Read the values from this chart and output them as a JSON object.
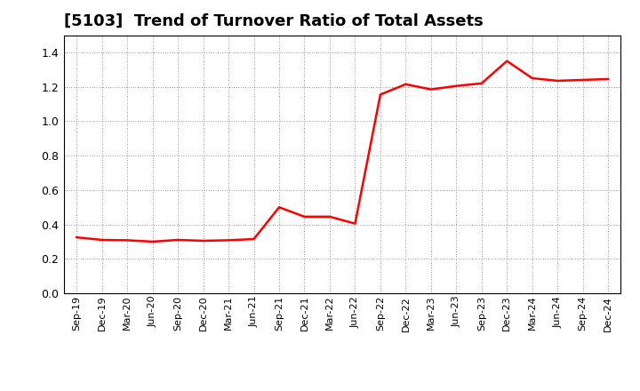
{
  "title": "[5103]  Trend of Turnover Ratio of Total Assets",
  "title_fontsize": 13,
  "line_color": "#FF0000",
  "line_width": 1.8,
  "background_color": "#FFFFFF",
  "grid_color": "#999999",
  "ylim": [
    0.0,
    1.5
  ],
  "yticks": [
    0.0,
    0.2,
    0.4,
    0.6,
    0.8,
    1.0,
    1.2,
    1.4
  ],
  "x_labels": [
    "Sep-19",
    "Dec-19",
    "Mar-20",
    "Jun-20",
    "Sep-20",
    "Dec-20",
    "Mar-21",
    "Jun-21",
    "Sep-21",
    "Dec-21",
    "Mar-22",
    "Jun-22",
    "Sep-22",
    "Dec-22",
    "Mar-23",
    "Jun-23",
    "Sep-23",
    "Dec-23",
    "Mar-24",
    "Jun-24",
    "Sep-24",
    "Dec-24"
  ],
  "y_values": [
    0.325,
    0.31,
    0.308,
    0.3,
    0.31,
    0.305,
    0.308,
    0.315,
    0.5,
    0.445,
    0.445,
    0.405,
    1.155,
    1.215,
    1.185,
    1.205,
    1.22,
    1.35,
    1.25,
    1.235,
    1.24,
    1.245
  ]
}
